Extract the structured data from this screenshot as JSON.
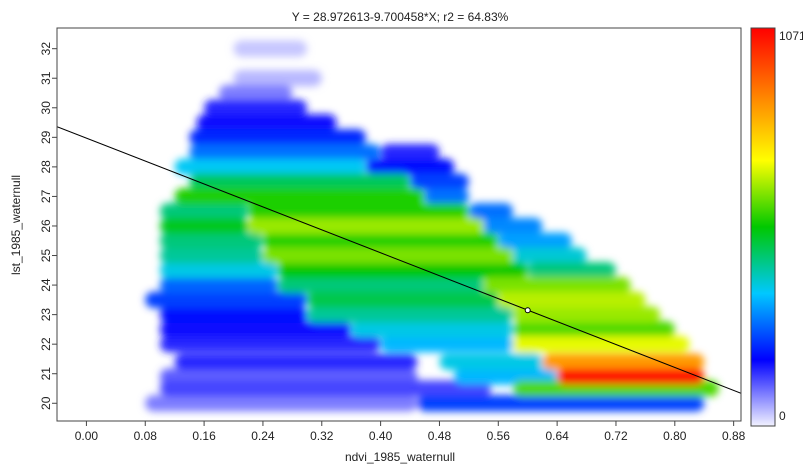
{
  "chart_data": {
    "type": "heatmap",
    "subtype": "density scatter with linear regression",
    "title": "Y = 28.972613-9.700458*X; r2 = 64.83%",
    "xlabel": "ndvi_1985_waternull",
    "ylabel": "lst_1985_waternull",
    "xlim": [
      -0.04,
      0.89
    ],
    "ylim": [
      19.4,
      32.7
    ],
    "x_ticks": [
      "0.00",
      "0.08",
      "0.16",
      "0.24",
      "0.32",
      "0.40",
      "0.48",
      "0.56",
      "0.64",
      "0.72",
      "0.80",
      "0.88"
    ],
    "x_tick_values": [
      0.0,
      0.08,
      0.16,
      0.24,
      0.32,
      0.4,
      0.48,
      0.56,
      0.64,
      0.72,
      0.8,
      0.88
    ],
    "y_ticks": [
      "20",
      "21",
      "22",
      "23",
      "24",
      "25",
      "26",
      "27",
      "28",
      "29",
      "30",
      "31",
      "32"
    ],
    "y_tick_values": [
      20,
      21,
      22,
      23,
      24,
      25,
      26,
      27,
      28,
      29,
      30,
      31,
      32
    ],
    "regression": {
      "intercept": 28.972613,
      "slope": -9.700458,
      "r2_percent": 64.83
    },
    "mean_point": {
      "x": 0.6,
      "y": 23.15
    },
    "colorbar": {
      "min": 0,
      "max": 1071,
      "min_label": "0",
      "max_label": "1071",
      "colors": [
        "#f2f2ff",
        "#0000ff",
        "#00c8ff",
        "#00c800",
        "#ffff00",
        "#ff8000",
        "#ff0000"
      ]
    },
    "density_rows": [
      {
        "y": 20.0,
        "segments": [
          {
            "x0": 0.08,
            "x1": 0.45,
            "d": 0.08
          },
          {
            "x0": 0.45,
            "x1": 0.84,
            "d": 0.22
          }
        ]
      },
      {
        "y": 20.5,
        "segments": [
          {
            "x0": 0.1,
            "x1": 0.55,
            "d": 0.12
          },
          {
            "x0": 0.58,
            "x1": 0.86,
            "d": 0.55
          }
        ]
      },
      {
        "y": 20.9,
        "segments": [
          {
            "x0": 0.1,
            "x1": 0.45,
            "d": 0.1
          },
          {
            "x0": 0.5,
            "x1": 0.64,
            "d": 0.32
          },
          {
            "x0": 0.64,
            "x1": 0.84,
            "d": 0.98
          }
        ]
      },
      {
        "y": 21.4,
        "segments": [
          {
            "x0": 0.12,
            "x1": 0.45,
            "d": 0.14
          },
          {
            "x0": 0.48,
            "x1": 0.62,
            "d": 0.35
          },
          {
            "x0": 0.62,
            "x1": 0.84,
            "d": 0.8
          }
        ]
      },
      {
        "y": 22.0,
        "segments": [
          {
            "x0": 0.1,
            "x1": 0.4,
            "d": 0.14
          },
          {
            "x0": 0.4,
            "x1": 0.58,
            "d": 0.32
          },
          {
            "x0": 0.58,
            "x1": 0.82,
            "d": 0.65
          }
        ]
      },
      {
        "y": 22.5,
        "segments": [
          {
            "x0": 0.1,
            "x1": 0.36,
            "d": 0.16
          },
          {
            "x0": 0.36,
            "x1": 0.58,
            "d": 0.35
          },
          {
            "x0": 0.58,
            "x1": 0.8,
            "d": 0.55
          }
        ]
      },
      {
        "y": 23.0,
        "segments": [
          {
            "x0": 0.1,
            "x1": 0.3,
            "d": 0.18
          },
          {
            "x0": 0.3,
            "x1": 0.58,
            "d": 0.4
          },
          {
            "x0": 0.58,
            "x1": 0.78,
            "d": 0.6
          }
        ]
      },
      {
        "y": 23.5,
        "segments": [
          {
            "x0": 0.08,
            "x1": 0.3,
            "d": 0.22
          },
          {
            "x0": 0.3,
            "x1": 0.56,
            "d": 0.45
          },
          {
            "x0": 0.56,
            "x1": 0.76,
            "d": 0.62
          }
        ]
      },
      {
        "y": 24.0,
        "segments": [
          {
            "x0": 0.1,
            "x1": 0.26,
            "d": 0.25
          },
          {
            "x0": 0.26,
            "x1": 0.54,
            "d": 0.42
          },
          {
            "x0": 0.54,
            "x1": 0.74,
            "d": 0.58
          }
        ]
      },
      {
        "y": 24.5,
        "segments": [
          {
            "x0": 0.1,
            "x1": 0.26,
            "d": 0.35
          },
          {
            "x0": 0.26,
            "x1": 0.6,
            "d": 0.5
          },
          {
            "x0": 0.6,
            "x1": 0.72,
            "d": 0.42
          }
        ]
      },
      {
        "y": 25.0,
        "segments": [
          {
            "x0": 0.1,
            "x1": 0.24,
            "d": 0.4
          },
          {
            "x0": 0.24,
            "x1": 0.58,
            "d": 0.58
          },
          {
            "x0": 0.58,
            "x1": 0.68,
            "d": 0.36
          }
        ]
      },
      {
        "y": 25.5,
        "segments": [
          {
            "x0": 0.1,
            "x1": 0.24,
            "d": 0.42
          },
          {
            "x0": 0.24,
            "x1": 0.56,
            "d": 0.52
          },
          {
            "x0": 0.56,
            "x1": 0.66,
            "d": 0.3
          }
        ]
      },
      {
        "y": 26.0,
        "segments": [
          {
            "x0": 0.1,
            "x1": 0.22,
            "d": 0.48
          },
          {
            "x0": 0.22,
            "x1": 0.54,
            "d": 0.6
          },
          {
            "x0": 0.54,
            "x1": 0.62,
            "d": 0.28
          }
        ]
      },
      {
        "y": 26.5,
        "segments": [
          {
            "x0": 0.1,
            "x1": 0.22,
            "d": 0.42
          },
          {
            "x0": 0.22,
            "x1": 0.52,
            "d": 0.52
          },
          {
            "x0": 0.52,
            "x1": 0.58,
            "d": 0.26
          }
        ]
      },
      {
        "y": 27.0,
        "segments": [
          {
            "x0": 0.12,
            "x1": 0.46,
            "d": 0.52
          },
          {
            "x0": 0.46,
            "x1": 0.52,
            "d": 0.26
          }
        ]
      },
      {
        "y": 27.5,
        "segments": [
          {
            "x0": 0.14,
            "x1": 0.44,
            "d": 0.44
          },
          {
            "x0": 0.44,
            "x1": 0.52,
            "d": 0.22
          }
        ]
      },
      {
        "y": 28.0,
        "segments": [
          {
            "x0": 0.12,
            "x1": 0.38,
            "d": 0.34
          },
          {
            "x0": 0.38,
            "x1": 0.5,
            "d": 0.18
          }
        ]
      },
      {
        "y": 28.5,
        "segments": [
          {
            "x0": 0.14,
            "x1": 0.4,
            "d": 0.26
          },
          {
            "x0": 0.4,
            "x1": 0.48,
            "d": 0.14
          }
        ]
      },
      {
        "y": 29.0,
        "segments": [
          {
            "x0": 0.14,
            "x1": 0.38,
            "d": 0.2
          }
        ]
      },
      {
        "y": 29.5,
        "segments": [
          {
            "x0": 0.15,
            "x1": 0.34,
            "d": 0.16
          }
        ]
      },
      {
        "y": 30.0,
        "segments": [
          {
            "x0": 0.16,
            "x1": 0.3,
            "d": 0.14
          }
        ]
      },
      {
        "y": 30.5,
        "segments": [
          {
            "x0": 0.18,
            "x1": 0.28,
            "d": 0.08
          }
        ]
      },
      {
        "y": 31.0,
        "segments": [
          {
            "x0": 0.2,
            "x1": 0.32,
            "d": 0.04
          }
        ]
      },
      {
        "y": 32.0,
        "segments": [
          {
            "x0": 0.2,
            "x1": 0.3,
            "d": 0.03
          }
        ]
      }
    ],
    "grid": false,
    "legend": "colorbar-right"
  }
}
